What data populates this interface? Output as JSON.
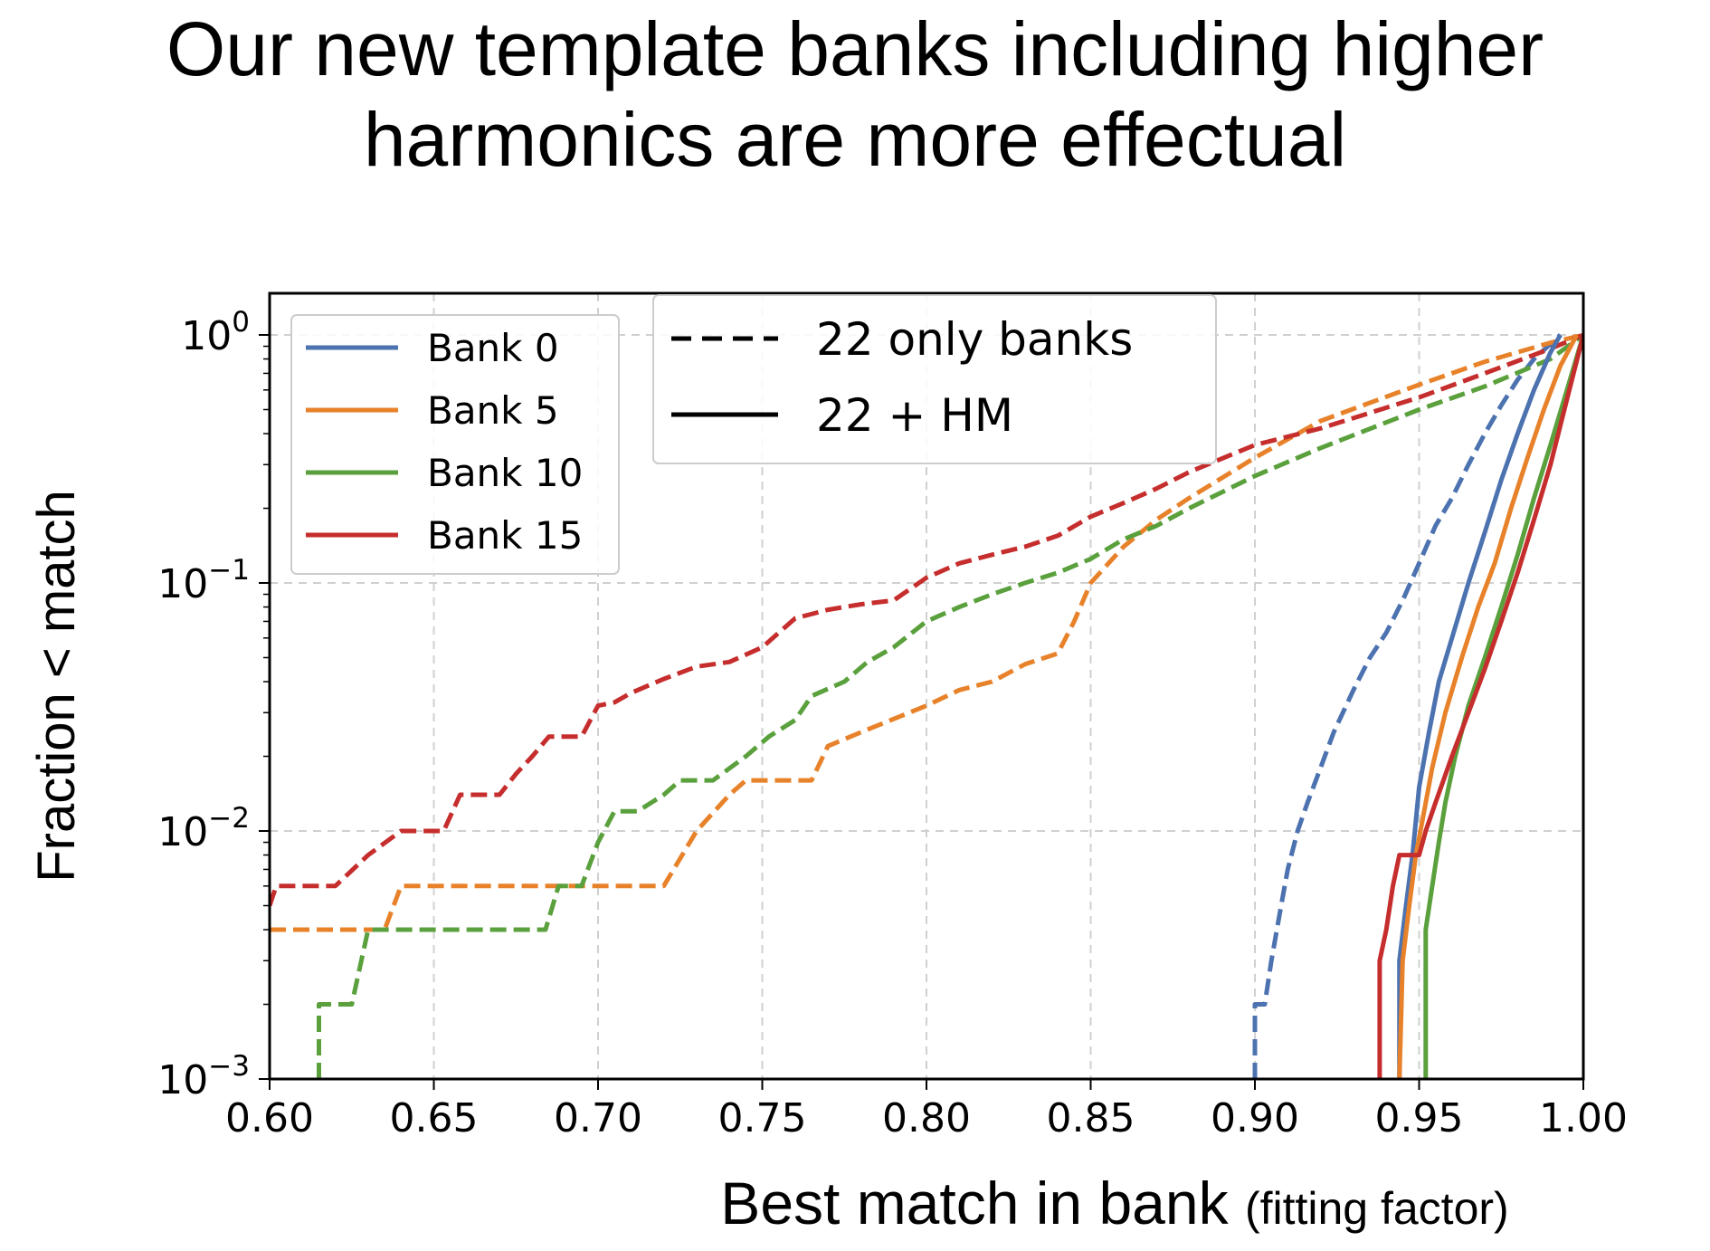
{
  "slide": {
    "title_line1": "Our new template banks including higher",
    "title_line2": "harmonics are more effectual"
  },
  "chart_data": {
    "type": "line",
    "xlabel": "Best match in bank",
    "xlabel_suffix": "(fitting factor)",
    "ylabel": "Fraction < match",
    "xlim": [
      0.6,
      1.0
    ],
    "ylim": [
      0.001,
      1.0
    ],
    "yscale": "log",
    "grid": true,
    "x_ticks": [
      "0.60",
      "0.65",
      "0.70",
      "0.75",
      "0.80",
      "0.85",
      "0.90",
      "0.95",
      "1.00"
    ],
    "y_ticks": [
      {
        "value": 1.0,
        "base": "10",
        "exp": "0"
      },
      {
        "value": 0.1,
        "base": "10",
        "exp": "−1"
      },
      {
        "value": 0.01,
        "base": "10",
        "exp": "−2"
      },
      {
        "value": 0.001,
        "base": "10",
        "exp": "−3"
      }
    ],
    "color_legend": {
      "placement": "top-left",
      "entries": [
        {
          "name": "Bank 0",
          "color": "#4c72b0"
        },
        {
          "name": "Bank 5",
          "color": "#e8822a"
        },
        {
          "name": "Bank 10",
          "color": "#5aa03c"
        },
        {
          "name": "Bank 15",
          "color": "#c62d2d"
        }
      ]
    },
    "style_legend": {
      "placement": "top-center",
      "entries": [
        {
          "name": "22 only banks",
          "dash": "dashed"
        },
        {
          "name": "22 + HM",
          "dash": "solid"
        }
      ]
    },
    "series": [
      {
        "bank": "Bank 0",
        "style": "dashed",
        "color": "#4c72b0",
        "points": [
          [
            0.9,
            0.001
          ],
          [
            0.9,
            0.002
          ],
          [
            0.903,
            0.002
          ],
          [
            0.905,
            0.003
          ],
          [
            0.908,
            0.005
          ],
          [
            0.91,
            0.007
          ],
          [
            0.913,
            0.01
          ],
          [
            0.916,
            0.013
          ],
          [
            0.92,
            0.018
          ],
          [
            0.924,
            0.025
          ],
          [
            0.93,
            0.037
          ],
          [
            0.935,
            0.05
          ],
          [
            0.94,
            0.063
          ],
          [
            0.945,
            0.085
          ],
          [
            0.95,
            0.12
          ],
          [
            0.955,
            0.17
          ],
          [
            0.96,
            0.22
          ],
          [
            0.965,
            0.3
          ],
          [
            0.97,
            0.4
          ],
          [
            0.975,
            0.52
          ],
          [
            0.98,
            0.66
          ],
          [
            0.985,
            0.8
          ],
          [
            0.99,
            0.92
          ],
          [
            0.993,
            1.0
          ]
        ]
      },
      {
        "bank": "Bank 5",
        "style": "dashed",
        "color": "#e8822a",
        "points": [
          [
            0.6,
            0.004
          ],
          [
            0.635,
            0.004
          ],
          [
            0.64,
            0.006
          ],
          [
            0.72,
            0.006
          ],
          [
            0.73,
            0.01
          ],
          [
            0.74,
            0.014
          ],
          [
            0.745,
            0.016
          ],
          [
            0.765,
            0.016
          ],
          [
            0.77,
            0.022
          ],
          [
            0.78,
            0.025
          ],
          [
            0.8,
            0.032
          ],
          [
            0.81,
            0.037
          ],
          [
            0.82,
            0.04
          ],
          [
            0.83,
            0.047
          ],
          [
            0.84,
            0.052
          ],
          [
            0.845,
            0.07
          ],
          [
            0.85,
            0.1
          ],
          [
            0.86,
            0.14
          ],
          [
            0.87,
            0.18
          ],
          [
            0.88,
            0.22
          ],
          [
            0.9,
            0.32
          ],
          [
            0.92,
            0.45
          ],
          [
            0.95,
            0.63
          ],
          [
            0.97,
            0.78
          ],
          [
            0.99,
            0.93
          ],
          [
            1.0,
            1.0
          ]
        ]
      },
      {
        "bank": "Bank 10",
        "style": "dashed",
        "color": "#5aa03c",
        "points": [
          [
            0.615,
            0.001
          ],
          [
            0.615,
            0.002
          ],
          [
            0.625,
            0.002
          ],
          [
            0.63,
            0.004
          ],
          [
            0.684,
            0.004
          ],
          [
            0.688,
            0.006
          ],
          [
            0.695,
            0.006
          ],
          [
            0.7,
            0.009
          ],
          [
            0.705,
            0.012
          ],
          [
            0.712,
            0.012
          ],
          [
            0.72,
            0.014
          ],
          [
            0.725,
            0.016
          ],
          [
            0.735,
            0.016
          ],
          [
            0.745,
            0.02
          ],
          [
            0.752,
            0.024
          ],
          [
            0.76,
            0.028
          ],
          [
            0.765,
            0.035
          ],
          [
            0.775,
            0.04
          ],
          [
            0.782,
            0.048
          ],
          [
            0.79,
            0.055
          ],
          [
            0.8,
            0.07
          ],
          [
            0.81,
            0.08
          ],
          [
            0.82,
            0.09
          ],
          [
            0.83,
            0.1
          ],
          [
            0.84,
            0.11
          ],
          [
            0.85,
            0.125
          ],
          [
            0.86,
            0.15
          ],
          [
            0.87,
            0.17
          ],
          [
            0.88,
            0.2
          ],
          [
            0.9,
            0.27
          ],
          [
            0.92,
            0.35
          ],
          [
            0.95,
            0.5
          ],
          [
            0.97,
            0.62
          ],
          [
            0.99,
            0.8
          ],
          [
            1.0,
            1.0
          ]
        ]
      },
      {
        "bank": "Bank 15",
        "style": "dashed",
        "color": "#c62d2d",
        "points": [
          [
            0.6,
            0.005
          ],
          [
            0.602,
            0.006
          ],
          [
            0.62,
            0.006
          ],
          [
            0.63,
            0.008
          ],
          [
            0.64,
            0.01
          ],
          [
            0.653,
            0.01
          ],
          [
            0.658,
            0.014
          ],
          [
            0.67,
            0.014
          ],
          [
            0.675,
            0.017
          ],
          [
            0.68,
            0.02
          ],
          [
            0.685,
            0.024
          ],
          [
            0.695,
            0.024
          ],
          [
            0.7,
            0.032
          ],
          [
            0.705,
            0.033
          ],
          [
            0.71,
            0.036
          ],
          [
            0.72,
            0.041
          ],
          [
            0.73,
            0.046
          ],
          [
            0.74,
            0.048
          ],
          [
            0.75,
            0.055
          ],
          [
            0.76,
            0.072
          ],
          [
            0.77,
            0.078
          ],
          [
            0.78,
            0.082
          ],
          [
            0.79,
            0.085
          ],
          [
            0.8,
            0.105
          ],
          [
            0.81,
            0.12
          ],
          [
            0.82,
            0.13
          ],
          [
            0.83,
            0.14
          ],
          [
            0.84,
            0.155
          ],
          [
            0.85,
            0.185
          ],
          [
            0.86,
            0.21
          ],
          [
            0.87,
            0.24
          ],
          [
            0.88,
            0.28
          ],
          [
            0.9,
            0.36
          ],
          [
            0.92,
            0.42
          ],
          [
            0.95,
            0.56
          ],
          [
            0.97,
            0.7
          ],
          [
            0.99,
            0.88
          ],
          [
            1.0,
            1.0
          ]
        ]
      },
      {
        "bank": "Bank 0",
        "style": "solid",
        "color": "#4c72b0",
        "points": [
          [
            0.944,
            0.001
          ],
          [
            0.944,
            0.003
          ],
          [
            0.946,
            0.005
          ],
          [
            0.948,
            0.008
          ],
          [
            0.95,
            0.015
          ],
          [
            0.953,
            0.025
          ],
          [
            0.956,
            0.04
          ],
          [
            0.96,
            0.06
          ],
          [
            0.965,
            0.1
          ],
          [
            0.97,
            0.16
          ],
          [
            0.975,
            0.26
          ],
          [
            0.98,
            0.4
          ],
          [
            0.985,
            0.6
          ],
          [
            0.99,
            0.85
          ],
          [
            0.993,
            1.0
          ]
        ]
      },
      {
        "bank": "Bank 5",
        "style": "solid",
        "color": "#e8822a",
        "points": [
          [
            0.944,
            0.001
          ],
          [
            0.945,
            0.003
          ],
          [
            0.947,
            0.005
          ],
          [
            0.949,
            0.008
          ],
          [
            0.951,
            0.011
          ],
          [
            0.954,
            0.018
          ],
          [
            0.958,
            0.03
          ],
          [
            0.963,
            0.05
          ],
          [
            0.968,
            0.08
          ],
          [
            0.973,
            0.12
          ],
          [
            0.978,
            0.2
          ],
          [
            0.983,
            0.32
          ],
          [
            0.988,
            0.5
          ],
          [
            0.993,
            0.75
          ],
          [
            0.998,
            1.0
          ]
        ]
      },
      {
        "bank": "Bank 10",
        "style": "solid",
        "color": "#5aa03c",
        "points": [
          [
            0.952,
            0.001
          ],
          [
            0.952,
            0.004
          ],
          [
            0.954,
            0.006
          ],
          [
            0.956,
            0.009
          ],
          [
            0.958,
            0.013
          ],
          [
            0.961,
            0.02
          ],
          [
            0.965,
            0.032
          ],
          [
            0.97,
            0.05
          ],
          [
            0.975,
            0.08
          ],
          [
            0.98,
            0.13
          ],
          [
            0.985,
            0.22
          ],
          [
            0.99,
            0.36
          ],
          [
            0.995,
            0.6
          ],
          [
            1.0,
            1.0
          ]
        ]
      },
      {
        "bank": "Bank 15",
        "style": "solid",
        "color": "#c62d2d",
        "points": [
          [
            0.938,
            0.001
          ],
          [
            0.938,
            0.003
          ],
          [
            0.94,
            0.004
          ],
          [
            0.942,
            0.006
          ],
          [
            0.944,
            0.008
          ],
          [
            0.95,
            0.008
          ],
          [
            0.952,
            0.01
          ],
          [
            0.955,
            0.013
          ],
          [
            0.96,
            0.02
          ],
          [
            0.965,
            0.03
          ],
          [
            0.97,
            0.045
          ],
          [
            0.975,
            0.07
          ],
          [
            0.98,
            0.11
          ],
          [
            0.985,
            0.18
          ],
          [
            0.99,
            0.3
          ],
          [
            0.995,
            0.55
          ],
          [
            1.0,
            1.0
          ]
        ]
      }
    ]
  }
}
